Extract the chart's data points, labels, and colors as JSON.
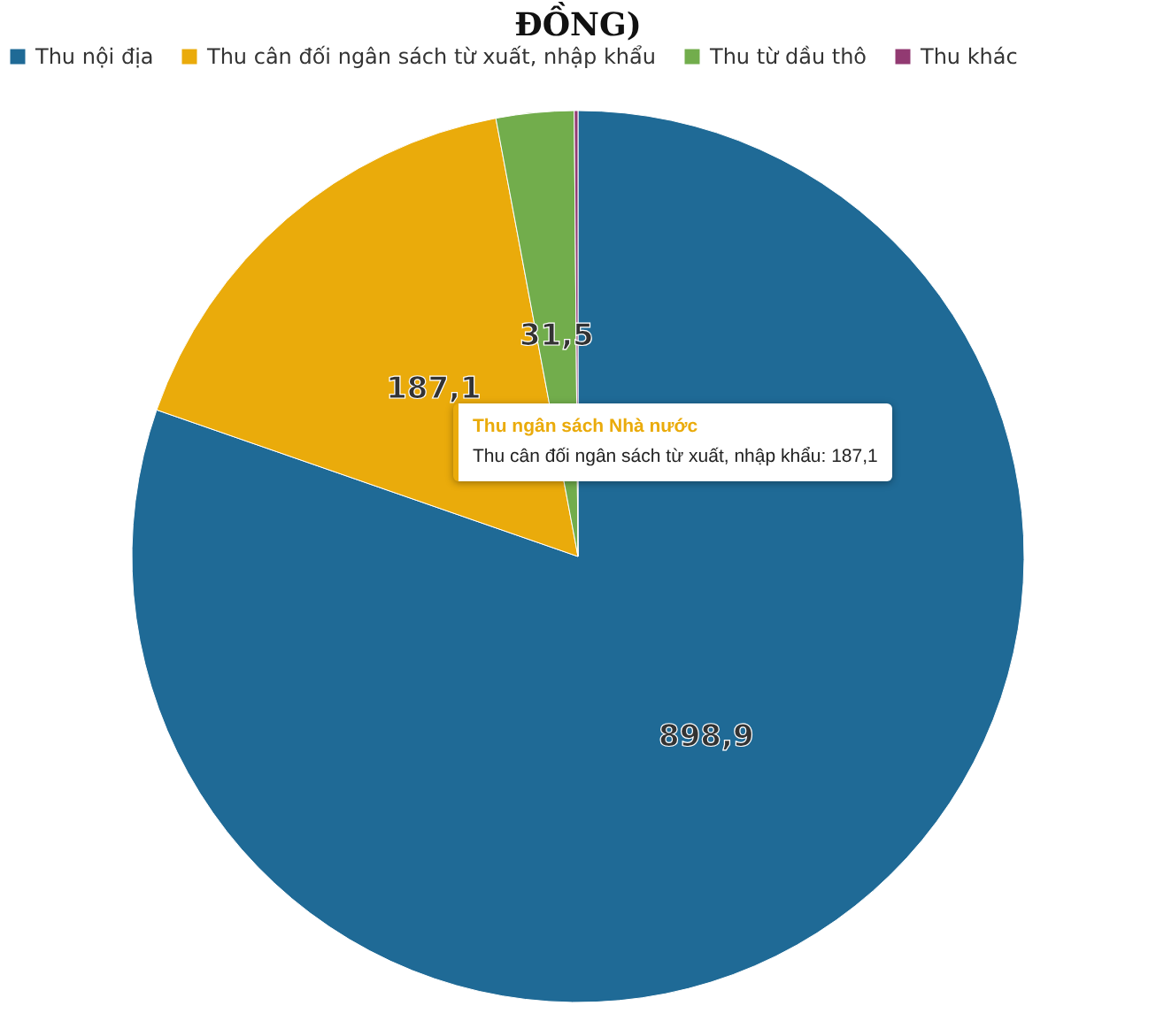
{
  "chart_data": {
    "type": "pie",
    "title": "ĐỒNG)",
    "categories": [
      "Thu nội địa",
      "Thu cân đối ngân sách từ xuất, nhập khẩu",
      "Thu từ dầu thô",
      "Thu khác"
    ],
    "values": [
      898.9,
      187.1,
      31.5,
      1.5
    ],
    "colors": [
      "#1f6a96",
      "#eaab0b",
      "#72ad4c",
      "#923a72"
    ],
    "value_labels": [
      "898,9",
      "187,1",
      "31,5",
      null
    ],
    "legend": "top",
    "annotations": [
      "Thu ngân sách Nhà nước",
      "Thu cân đối ngân sách từ xuất, nhập khẩu: 187,1"
    ]
  }
}
